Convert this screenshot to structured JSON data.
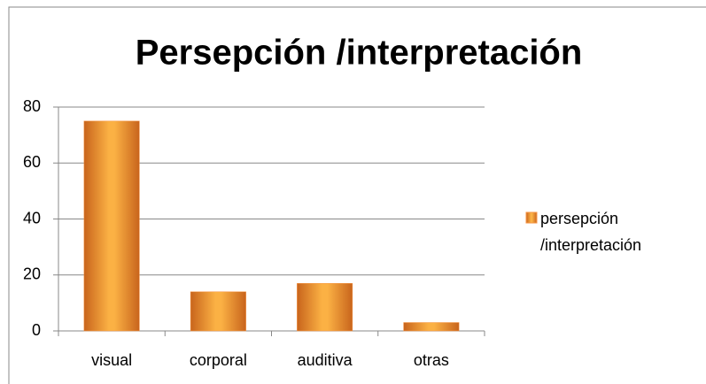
{
  "chart_data": {
    "type": "bar",
    "title": "Persepción /interpretación",
    "categories": [
      "visual",
      "corporal",
      "auditiva",
      "otras"
    ],
    "series": [
      {
        "name": "persepción /interpretación",
        "color": "#f79646",
        "values": [
          75,
          14,
          17,
          3
        ]
      }
    ],
    "ylim": [
      0,
      80
    ],
    "yticks": [
      0,
      20,
      40,
      60,
      80
    ],
    "grid": true,
    "legend": "right"
  }
}
